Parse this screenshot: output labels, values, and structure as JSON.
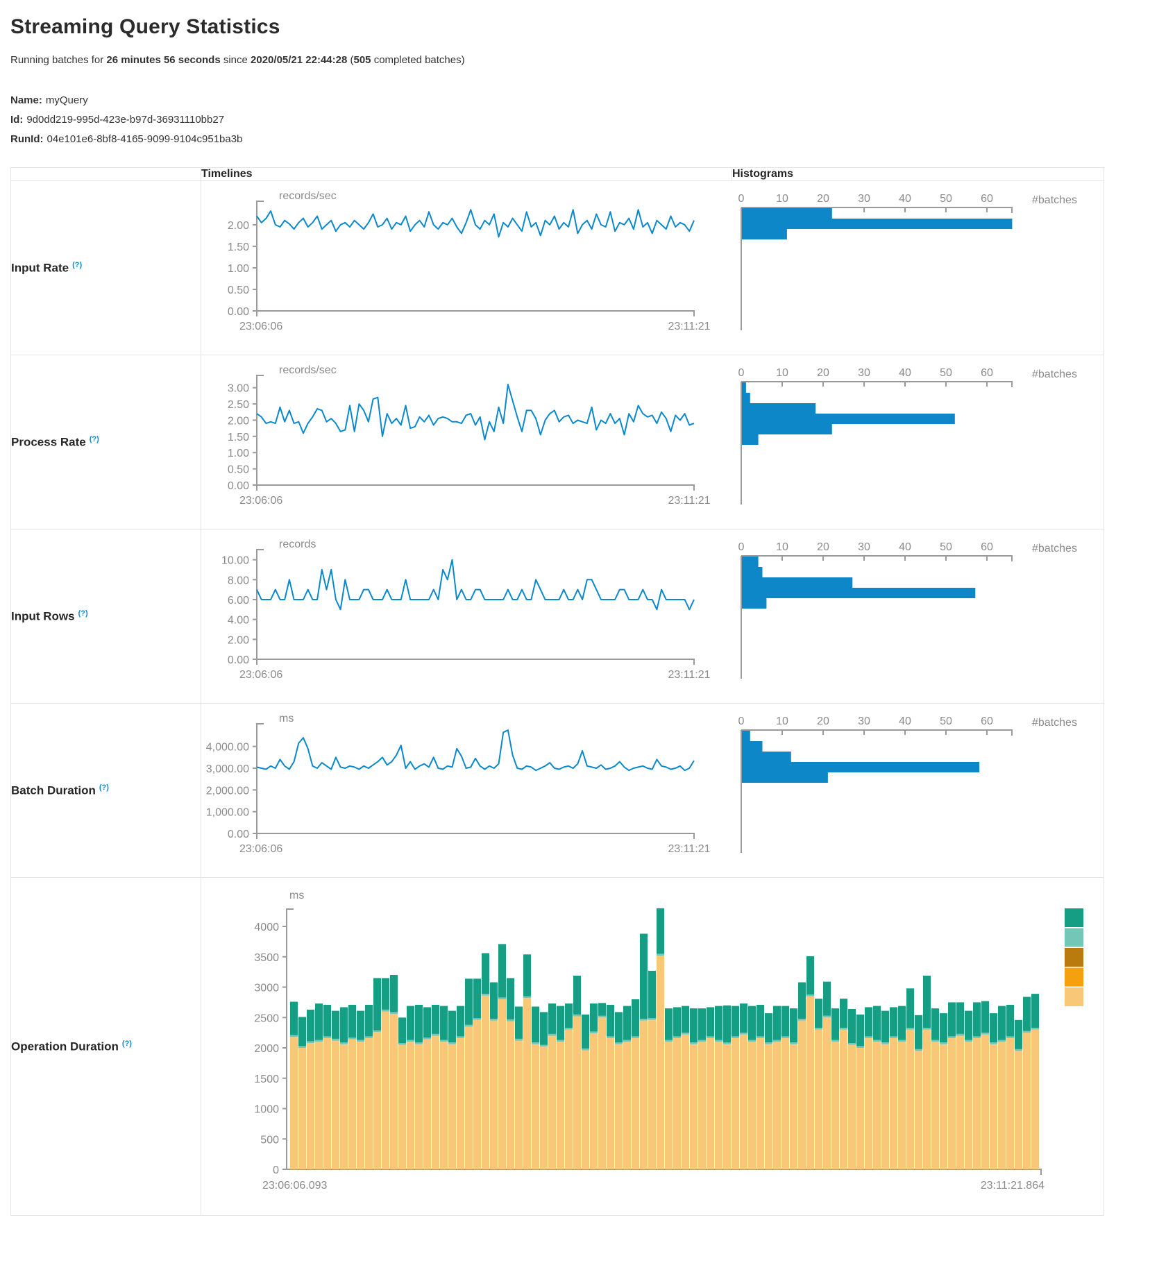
{
  "page": {
    "title": "Streaming Query Statistics",
    "subtitle": {
      "prefix": "Running batches for ",
      "duration": "26 minutes 56 seconds",
      "mid": " since ",
      "timestamp": "2020/05/21 22:44:28",
      "paren": " (",
      "completed_count": "505",
      "suffix": " completed batches)"
    },
    "query": {
      "name_label": "Name:",
      "name_value": "myQuery",
      "id_label": "Id:",
      "id_value": "9d0dd219-995d-423e-b97d-36931110bb27",
      "runid_label": "RunId:",
      "runid_value": "04e101e6-8bf8-4165-9099-9104c951ba3b"
    }
  },
  "table": {
    "timelines_header": "Timelines",
    "histograms_header": "Histograms",
    "help_marker": "(?)"
  },
  "colors": {
    "line_blue": "#0a88cc",
    "hist_blue": "#0d87c8",
    "axis_gray": "#9a9a9a",
    "text_gray": "#8a8a8a",
    "teal": "#169e84",
    "light_teal": "#74c7b7",
    "dark_gold": "#b97a0e",
    "orange": "#f4a00f",
    "tan": "#f8c777"
  },
  "chart_data": [
    {
      "name": "input-rate",
      "row_label": "Input Rate",
      "timeline": {
        "type": "line",
        "unit": "records/sec",
        "x_start": "23:06:06",
        "x_end": "23:11:21",
        "y_ticks": [
          [
            0,
            "0.00"
          ],
          [
            0.5,
            "0.50"
          ],
          [
            1,
            "1.00"
          ],
          [
            1.5,
            "1.50"
          ],
          [
            2,
            "2.00"
          ]
        ],
        "y_scale_max": 2.45,
        "values": [
          2.2,
          2.05,
          2.15,
          2.32,
          2.0,
          1.95,
          2.1,
          2.02,
          1.9,
          2.05,
          2.15,
          1.95,
          2.05,
          2.2,
          1.9,
          2.0,
          2.1,
          1.85,
          2.0,
          2.05,
          1.95,
          2.1,
          2.0,
          1.9,
          2.05,
          2.25,
          1.95,
          2.0,
          2.15,
          1.9,
          2.05,
          2.0,
          2.2,
          1.85,
          2.0,
          2.1,
          1.95,
          2.3,
          2.0,
          1.9,
          2.05,
          2.0,
          2.15,
          1.95,
          1.8,
          2.05,
          2.35,
          2.0,
          1.9,
          2.1,
          2.0,
          2.25,
          1.72,
          2.05,
          1.95,
          2.15,
          2.0,
          1.85,
          2.3,
          1.95,
          2.05,
          1.75,
          2.1,
          2.0,
          2.2,
          1.9,
          2.05,
          1.95,
          2.35,
          1.8,
          2.0,
          2.1,
          1.9,
          2.25,
          2.0,
          1.95,
          2.3,
          1.85,
          2.05,
          2.0,
          2.15,
          1.9,
          2.35,
          1.95,
          2.05,
          1.8,
          2.1,
          2.0,
          1.9,
          2.2,
          1.95,
          2.05,
          2.0,
          1.85,
          2.1
        ]
      },
      "histogram": {
        "type": "bar",
        "orientation": "horizontal",
        "x_ticks": [
          0,
          10,
          20,
          30,
          40,
          50,
          60
        ],
        "x_label": "#batches",
        "bins": [
          22,
          66,
          11
        ]
      }
    },
    {
      "name": "process-rate",
      "row_label": "Process Rate",
      "timeline": {
        "type": "line",
        "unit": "records/sec",
        "x_start": "23:06:06",
        "x_end": "23:11:21",
        "y_ticks": [
          [
            0,
            "0.00"
          ],
          [
            0.5,
            "0.50"
          ],
          [
            1,
            "1.00"
          ],
          [
            1.5,
            "1.50"
          ],
          [
            2,
            "2.00"
          ],
          [
            2.5,
            "2.50"
          ],
          [
            3,
            "3.00"
          ]
        ],
        "y_scale_max": 3.25,
        "values": [
          2.2,
          2.1,
          1.9,
          1.95,
          1.9,
          2.4,
          1.95,
          2.3,
          1.9,
          1.95,
          1.6,
          1.9,
          2.1,
          2.35,
          2.3,
          1.95,
          2.05,
          1.9,
          1.65,
          1.7,
          2.45,
          1.65,
          2.5,
          2.3,
          1.95,
          2.65,
          2.7,
          1.5,
          2.2,
          1.9,
          2.05,
          1.85,
          2.45,
          1.75,
          1.8,
          2.1,
          1.95,
          2.15,
          1.85,
          2.05,
          2.1,
          2.05,
          1.95,
          1.95,
          1.9,
          2.15,
          2.2,
          1.85,
          2.1,
          1.4,
          1.95,
          1.65,
          2.4,
          1.9,
          3.1,
          2.6,
          2.1,
          1.65,
          2.3,
          2.3,
          2.05,
          1.55,
          2.0,
          2.2,
          2.3,
          1.95,
          2.1,
          2.15,
          1.9,
          2.0,
          1.95,
          1.9,
          2.4,
          1.7,
          2.0,
          1.9,
          2.2,
          1.9,
          2.05,
          1.55,
          2.2,
          1.95,
          2.45,
          2.2,
          2.1,
          2.15,
          1.9,
          2.25,
          2.05,
          1.65,
          2.15,
          2.0,
          2.2,
          1.85,
          1.9
        ]
      },
      "histogram": {
        "type": "bar",
        "orientation": "horizontal",
        "x_ticks": [
          0,
          10,
          20,
          30,
          40,
          50,
          60
        ],
        "x_label": "#batches",
        "bins": [
          1,
          2,
          18,
          52,
          22,
          4
        ]
      }
    },
    {
      "name": "input-rows",
      "row_label": "Input Rows",
      "timeline": {
        "type": "line",
        "unit": "records",
        "x_start": "23:06:06",
        "x_end": "23:11:21",
        "y_ticks": [
          [
            0,
            "0.00"
          ],
          [
            2,
            "2.00"
          ],
          [
            4,
            "4.00"
          ],
          [
            6,
            "6.00"
          ],
          [
            8,
            "8.00"
          ],
          [
            10,
            "10.00"
          ]
        ],
        "y_scale_max": 10.6,
        "values": [
          7,
          6,
          6,
          6,
          7,
          6,
          6,
          8,
          6,
          6,
          6,
          7,
          6,
          6,
          9,
          7,
          9,
          6,
          5,
          8,
          6,
          6,
          6,
          7,
          7,
          6,
          6,
          6,
          7,
          6,
          6,
          6,
          8,
          6,
          6,
          6,
          6,
          6,
          7,
          6,
          9,
          8,
          10,
          6,
          7,
          6,
          6,
          7,
          7,
          6,
          6,
          6,
          6,
          6,
          7,
          6,
          6,
          7,
          6,
          6,
          8,
          7,
          6,
          6,
          6,
          6,
          7,
          6,
          6,
          7,
          6,
          8,
          8,
          7,
          6,
          6,
          6,
          6,
          7,
          7,
          6,
          6,
          6,
          7,
          6,
          6,
          5,
          7,
          6,
          6,
          6,
          6,
          6,
          5,
          6
        ]
      },
      "histogram": {
        "type": "bar",
        "orientation": "horizontal",
        "x_ticks": [
          0,
          10,
          20,
          30,
          40,
          50,
          60
        ],
        "x_label": "#batches",
        "bins": [
          4,
          5,
          27,
          57,
          6
        ]
      }
    },
    {
      "name": "batch-duration",
      "row_label": "Batch Duration",
      "timeline": {
        "type": "line",
        "unit": "ms",
        "x_start": "23:06:06",
        "x_end": "23:11:21",
        "y_ticks": [
          [
            0,
            "0.00"
          ],
          [
            1000,
            "1,000.00"
          ],
          [
            2000,
            "2,000.00"
          ],
          [
            3000,
            "3,000.00"
          ],
          [
            4000,
            "4,000.00"
          ]
        ],
        "y_scale_max": 4850,
        "values": [
          3050,
          3000,
          2950,
          3100,
          3000,
          3400,
          3100,
          2950,
          3300,
          4150,
          4400,
          3900,
          3100,
          3000,
          3250,
          3100,
          2950,
          3500,
          3050,
          3000,
          3100,
          3050,
          2950,
          3100,
          3000,
          3150,
          3300,
          3500,
          3150,
          3300,
          3600,
          4050,
          3000,
          3300,
          2950,
          3100,
          3200,
          3050,
          3500,
          3000,
          2950,
          3100,
          3050,
          3900,
          3550,
          3000,
          3050,
          3450,
          3100,
          2950,
          3100,
          3000,
          3200,
          4650,
          4750,
          3600,
          3000,
          2950,
          3100,
          3050,
          2900,
          3000,
          3100,
          3250,
          3000,
          2950,
          3050,
          3100,
          3000,
          3200,
          3800,
          3100,
          3050,
          3000,
          3150,
          2950,
          3000,
          3100,
          3300,
          3050,
          2900,
          3000,
          3050,
          3100,
          3000,
          2950,
          3400,
          3100,
          3050,
          2950,
          3000,
          3100,
          2900,
          3000,
          3350
        ]
      },
      "histogram": {
        "type": "bar",
        "orientation": "horizontal",
        "x_ticks": [
          0,
          10,
          20,
          30,
          40,
          50,
          60
        ],
        "x_label": "#batches",
        "bins": [
          2,
          5,
          12,
          58,
          21
        ]
      }
    },
    {
      "name": "operation-duration",
      "row_label": "Operation Duration",
      "timeline": {
        "type": "stacked-bar",
        "unit": "ms",
        "x_start": "23:06:06.093",
        "x_end": "23:11:21.864",
        "y_ticks": [
          [
            0,
            "0"
          ],
          [
            500,
            "500"
          ],
          [
            1000,
            "1000"
          ],
          [
            1500,
            "1500"
          ],
          [
            2000,
            "2000"
          ],
          [
            2500,
            "2500"
          ],
          [
            3000,
            "3000"
          ],
          [
            3500,
            "3500"
          ],
          [
            4000,
            "4000"
          ]
        ],
        "y_scale_max": 4300,
        "legend_colors": [
          "#169e84",
          "#74c7b7",
          "#b97a0e",
          "#f4a00f",
          "#f8c777"
        ],
        "series": [
          {
            "color": "#f8c777",
            "values": [
              2180,
              2000,
              2080,
              2100,
              2160,
              2120,
              2060,
              2140,
              2100,
              2160,
              2260,
              2600,
              2560,
              2050,
              2100,
              2060,
              2140,
              2200,
              2100,
              2060,
              2160,
              2350,
              2460,
              2860,
              2450,
              2800,
              2440,
              2120,
              2820,
              2060,
              2020,
              2200,
              2100,
              2300,
              2520,
              1960,
              2240,
              2500,
              2160,
              2060,
              2100,
              2160,
              2450,
              2460,
              3520,
              2100,
              2160,
              2220,
              2060,
              2100,
              2160,
              2100,
              2060,
              2160,
              2220,
              2100,
              2160,
              2060,
              2100,
              2160,
              2060,
              2450,
              2850,
              2300,
              2500,
              2100,
              2300,
              2050,
              2000,
              2160,
              2100,
              2060,
              2160,
              2100,
              2300,
              1950,
              2300,
              2100,
              2060,
              2160,
              2200,
              2100,
              2160,
              2220,
              2060,
              2100,
              2160,
              1950,
              2250,
              2300
            ]
          },
          {
            "color": "#f4a00f",
            "constant": 0
          },
          {
            "color": "#b97a0e",
            "constant": 0
          },
          {
            "color": "#74c7b7",
            "constant": 30
          },
          {
            "color": "#169e84",
            "values": [
              550,
              480,
              520,
              600,
              520,
              460,
              580,
              540,
              480,
              520,
              860,
              520,
              610,
              420,
              560,
              620,
              500,
              480,
              560,
              520,
              500,
              760,
              650,
              670,
              600,
              880,
              680,
              530,
              690,
              590,
              540,
              500,
              560,
              400,
              640,
              560,
              460,
              210,
              520,
              500,
              560,
              610,
              1400,
              780,
              750,
              520,
              480,
              440,
              560,
              520,
              480,
              560,
              610,
              500,
              480,
              560,
              520,
              480,
              560,
              500,
              560,
              600,
              630,
              480,
              560,
              520,
              480,
              560,
              520,
              480,
              560,
              520,
              480,
              560,
              650,
              560,
              860,
              520,
              480,
              560,
              520,
              480,
              560,
              520,
              480,
              560,
              520,
              480,
              560,
              560
            ]
          }
        ]
      }
    }
  ]
}
